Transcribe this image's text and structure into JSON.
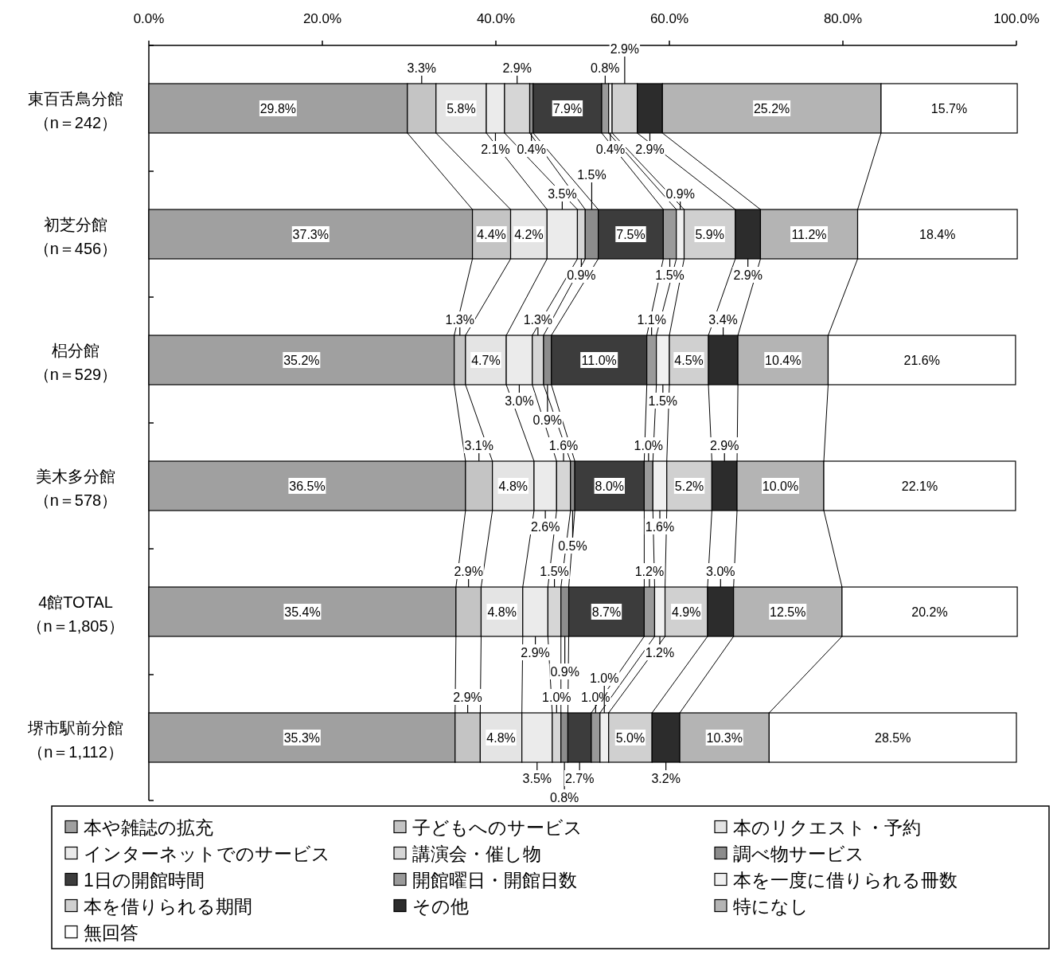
{
  "chart_data": {
    "type": "bar",
    "orientation": "horizontal",
    "stacked": true,
    "legend": "bottom",
    "xlim": [
      0,
      100
    ],
    "xticks": [
      {
        "value": 0,
        "label": "0.0%"
      },
      {
        "value": 20,
        "label": "20.0%"
      },
      {
        "value": 40,
        "label": "40.0%"
      },
      {
        "value": 60,
        "label": "60.0%"
      },
      {
        "value": 80,
        "label": "80.0%"
      },
      {
        "value": 100,
        "label": "100.0%"
      }
    ],
    "categories": [
      "東百舌鳥分館（n＝242）",
      "初芝分館（n＝456）",
      "梠分館（n＝529）",
      "美木多分館（n＝578）",
      "4館TOTAL（n＝1,805）",
      "堺市駅前分館（n＝1,112）"
    ],
    "series": [
      {
        "name": "本や雑誌の拡充",
        "color": "#a0a0a0",
        "values": [
          29.8,
          37.3,
          35.2,
          36.5,
          35.4,
          35.3
        ],
        "value_labels": [
          "29.8%",
          "37.3%",
          "35.2%",
          "36.5%",
          "35.4%",
          "35.3%"
        ]
      },
      {
        "name": "子どもへのサービス",
        "color": "#c4c4c4",
        "values": [
          3.3,
          4.4,
          1.3,
          3.1,
          2.9,
          2.9
        ],
        "value_labels": [
          "3.3%",
          "4.4%",
          "1.3%",
          "3.1%",
          "2.9%",
          "2.9%"
        ]
      },
      {
        "name": "本のリクエスト・予約",
        "color": "#e4e4e4",
        "values": [
          5.8,
          4.2,
          4.7,
          4.8,
          4.8,
          4.8
        ],
        "value_labels": [
          "5.8%",
          "4.2%",
          "4.7%",
          "4.8%",
          "4.8%",
          "4.8%"
        ]
      },
      {
        "name": "インターネットでのサービス",
        "color": "#ebebeb",
        "values": [
          2.1,
          3.5,
          3.0,
          2.6,
          2.9,
          3.5
        ],
        "value_labels": [
          "2.1%",
          "3.5%",
          "3.0%",
          "2.6%",
          "2.9%",
          "3.5%"
        ]
      },
      {
        "name": "講演会・催し物",
        "color": "#d6d6d6",
        "values": [
          2.9,
          0.9,
          1.3,
          1.6,
          1.5,
          1.0
        ],
        "value_labels": [
          "2.9%",
          "0.9%",
          "1.3%",
          "1.6%",
          "1.5%",
          "1.0%"
        ]
      },
      {
        "name": "調べ物サービス",
        "color": "#8c8c8c",
        "values": [
          0.4,
          1.5,
          0.9,
          0.5,
          0.9,
          0.8
        ],
        "value_labels": [
          "0.4%",
          "1.5%",
          "0.9%",
          "0.5%",
          "0.9%",
          "0.8%"
        ]
      },
      {
        "name": "1日の開館時間",
        "color": "#3c3c3c",
        "values": [
          7.9,
          7.5,
          11.0,
          8.0,
          8.7,
          2.7
        ],
        "value_labels": [
          "7.9%",
          "7.5%",
          "11.0%",
          "8.0%",
          "8.7%",
          "2.7%"
        ]
      },
      {
        "name": "開館曜日・開館日数",
        "color": "#9a9a9a",
        "values": [
          0.8,
          1.5,
          1.1,
          1.0,
          1.2,
          1.0
        ],
        "value_labels": [
          "0.8%",
          "1.5%",
          "1.1%",
          "1.0%",
          "1.2%",
          "1.0%"
        ]
      },
      {
        "name": "本を一度に借りられる冊数",
        "color": "#f0f0f0",
        "values": [
          0.4,
          0.9,
          1.5,
          1.6,
          1.2,
          1.0
        ],
        "value_labels": [
          "0.4%",
          "0.9%",
          "1.5%",
          "1.6%",
          "1.2%",
          "1.0%"
        ]
      },
      {
        "name": "本を借りられる期間",
        "color": "#d0d0d0",
        "values": [
          2.9,
          5.9,
          4.5,
          5.2,
          4.9,
          5.0
        ],
        "value_labels": [
          "2.9%",
          "5.9%",
          "4.5%",
          "5.2%",
          "4.9%",
          "5.0%"
        ]
      },
      {
        "name": "その他",
        "color": "#2c2c2c",
        "values": [
          2.9,
          2.9,
          3.4,
          2.9,
          3.0,
          3.2
        ],
        "value_labels": [
          "2.9%",
          "2.9%",
          "3.4%",
          "2.9%",
          "3.0%",
          "3.2%"
        ]
      },
      {
        "name": "特になし",
        "color": "#b4b4b4",
        "values": [
          25.2,
          11.2,
          10.4,
          10.0,
          12.5,
          10.3
        ],
        "value_labels": [
          "25.2%",
          "11.2%",
          "10.4%",
          "10.0%",
          "12.5%",
          "10.3%"
        ]
      },
      {
        "name": "無回答",
        "color": "#ffffff",
        "values": [
          15.7,
          18.4,
          21.6,
          22.1,
          20.2,
          28.5
        ],
        "value_labels": [
          "15.7%",
          "18.4%",
          "21.6%",
          "22.1%",
          "20.2%",
          "28.5%"
        ]
      }
    ]
  }
}
